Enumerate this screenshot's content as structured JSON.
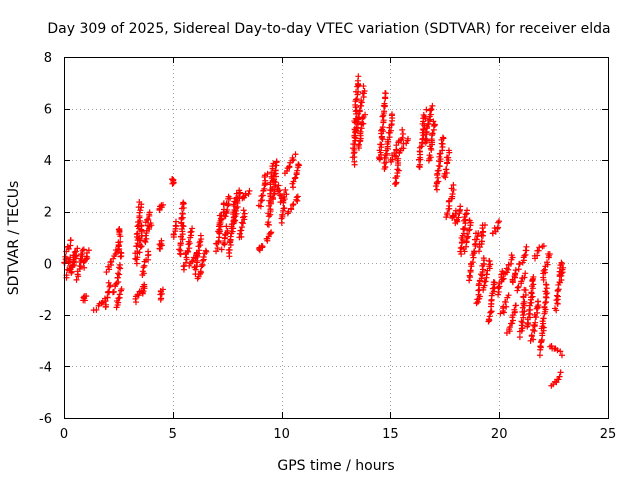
{
  "chart_data": {
    "type": "scatter",
    "title": "Day 309 of 2025, Sidereal Day-to-day VTEC variation (SDTVAR) for receiver elda",
    "xlabel": "GPS time / hours",
    "ylabel": "SDTVAR / TECUs",
    "xlim": [
      0,
      25
    ],
    "ylim": [
      -6,
      8
    ],
    "xticks": [
      0,
      5,
      10,
      15,
      20,
      25
    ],
    "yticks": [
      -6,
      -4,
      -2,
      0,
      2,
      4,
      6,
      8
    ],
    "grid": true,
    "marker": "+",
    "color": "#ff0000",
    "series": [
      {
        "name": "SDTVAR",
        "segments": [
          [
            0.0,
            0.0,
            0.3,
            0.9
          ],
          [
            0.15,
            -0.5,
            0.3,
            0.2
          ],
          [
            0.3,
            -0.4,
            0.5,
            0.4
          ],
          [
            0.4,
            -0.2,
            0.6,
            0.5
          ],
          [
            0.6,
            -0.6,
            0.9,
            0.6
          ],
          [
            0.9,
            -0.1,
            1.1,
            0.5
          ],
          [
            0.9,
            -1.4,
            1.0,
            -1.3
          ],
          [
            1.4,
            -1.8,
            1.9,
            -1.4
          ],
          [
            1.9,
            -1.7,
            2.1,
            -0.8
          ],
          [
            2.0,
            -0.3,
            2.5,
            0.6
          ],
          [
            2.3,
            -1.2,
            2.6,
            -0.1
          ],
          [
            2.4,
            -1.7,
            2.6,
            -1.0
          ],
          [
            2.5,
            1.4,
            2.6,
            0.2
          ],
          [
            3.3,
            -1.5,
            3.5,
            -1.0
          ],
          [
            3.3,
            0.0,
            3.5,
            2.4
          ],
          [
            3.5,
            0.5,
            3.6,
            1.5
          ],
          [
            3.6,
            -0.4,
            3.9,
            0.4
          ],
          [
            3.7,
            0.8,
            4.0,
            1.5
          ],
          [
            3.8,
            1.5,
            3.9,
            2.0
          ],
          [
            3.6,
            -1.2,
            3.7,
            -0.8
          ],
          [
            4.4,
            -1.4,
            4.5,
            -1.0
          ],
          [
            4.4,
            0.6,
            4.5,
            0.8
          ],
          [
            4.4,
            2.0,
            4.5,
            2.3
          ],
          [
            5.0,
            3.1,
            5.05,
            3.3
          ],
          [
            5.0,
            1.0,
            5.2,
            1.6
          ],
          [
            5.3,
            0.3,
            5.5,
            1.5
          ],
          [
            5.4,
            1.5,
            5.5,
            2.4
          ],
          [
            5.5,
            -0.2,
            5.9,
            1.3
          ],
          [
            5.8,
            -0.1,
            6.1,
            0.4
          ],
          [
            6.0,
            -0.4,
            6.3,
            1.0
          ],
          [
            6.2,
            -0.6,
            6.5,
            0.5
          ],
          [
            7.0,
            0.5,
            7.2,
            1.8
          ],
          [
            7.1,
            1.2,
            7.4,
            2.3
          ],
          [
            7.3,
            0.6,
            7.5,
            1.4
          ],
          [
            7.4,
            1.8,
            7.6,
            2.6
          ],
          [
            7.6,
            0.3,
            7.9,
            2.7
          ],
          [
            7.8,
            1.5,
            8.1,
            2.9
          ],
          [
            8.2,
            2.5,
            8.5,
            2.8
          ],
          [
            8.1,
            1.0,
            8.3,
            2.0
          ],
          [
            9.0,
            0.5,
            9.1,
            0.6
          ],
          [
            9.0,
            2.2,
            9.3,
            3.5
          ],
          [
            9.3,
            0.9,
            9.5,
            1.2
          ],
          [
            9.4,
            1.5,
            9.6,
            3.8
          ],
          [
            9.6,
            2.5,
            9.8,
            4.0
          ],
          [
            9.8,
            3.0,
            10.0,
            2.4
          ],
          [
            10.0,
            1.6,
            10.2,
            2.8
          ],
          [
            10.2,
            3.5,
            10.6,
            4.2
          ],
          [
            10.3,
            2.0,
            10.8,
            2.6
          ],
          [
            10.5,
            3.0,
            10.8,
            3.9
          ],
          [
            13.3,
            3.9,
            13.5,
            7.2
          ],
          [
            13.4,
            5.0,
            13.8,
            6.8
          ],
          [
            13.5,
            4.5,
            13.8,
            5.8
          ],
          [
            14.5,
            4.0,
            14.8,
            6.6
          ],
          [
            14.7,
            3.6,
            15.1,
            5.8
          ],
          [
            15.0,
            3.9,
            15.6,
            5.1
          ],
          [
            15.2,
            3.0,
            15.4,
            4.0
          ],
          [
            15.3,
            4.2,
            15.8,
            4.8
          ],
          [
            16.3,
            3.7,
            16.6,
            5.9
          ],
          [
            16.6,
            4.6,
            16.9,
            6.1
          ],
          [
            16.8,
            4.0,
            17.0,
            5.5
          ],
          [
            17.1,
            2.9,
            17.4,
            4.9
          ],
          [
            17.5,
            3.3,
            17.7,
            4.3
          ],
          [
            17.6,
            1.8,
            17.9,
            3.0
          ],
          [
            17.8,
            1.7,
            18.0,
            2.0
          ],
          [
            18.0,
            1.5,
            18.2,
            2.2
          ],
          [
            18.2,
            0.4,
            18.5,
            2.0
          ],
          [
            18.4,
            0.5,
            18.7,
            1.7
          ],
          [
            18.6,
            -0.6,
            19.0,
            1.2
          ],
          [
            19.0,
            -1.6,
            19.3,
            0.2
          ],
          [
            19.1,
            0.5,
            19.3,
            1.5
          ],
          [
            19.3,
            -1.0,
            19.6,
            0.1
          ],
          [
            19.5,
            -2.3,
            19.8,
            -0.7
          ],
          [
            19.7,
            1.1,
            20.0,
            1.6
          ],
          [
            19.9,
            -1.2,
            20.2,
            -0.3
          ],
          [
            20.1,
            -2.0,
            20.4,
            -1.3
          ],
          [
            20.2,
            -0.6,
            20.6,
            0.3
          ],
          [
            20.4,
            -2.7,
            20.8,
            -1.6
          ],
          [
            20.6,
            -0.8,
            20.9,
            0.0
          ],
          [
            20.8,
            -1.0,
            21.2,
            -0.4
          ],
          [
            21.0,
            -2.8,
            21.2,
            -1.0
          ],
          [
            21.1,
            0.0,
            21.3,
            0.6
          ],
          [
            21.3,
            -2.5,
            21.6,
            -0.5
          ],
          [
            21.5,
            -3.0,
            21.8,
            -1.4
          ],
          [
            21.6,
            0.2,
            22.0,
            0.7
          ],
          [
            21.9,
            -3.5,
            22.2,
            -0.8
          ],
          [
            22.0,
            -0.6,
            22.3,
            0.4
          ],
          [
            22.3,
            -3.2,
            22.9,
            -3.5
          ],
          [
            22.4,
            -4.8,
            22.8,
            -4.3
          ],
          [
            22.6,
            -1.8,
            22.9,
            -0.1
          ],
          [
            22.8,
            -0.4,
            22.9,
            0.0
          ]
        ]
      }
    ]
  }
}
